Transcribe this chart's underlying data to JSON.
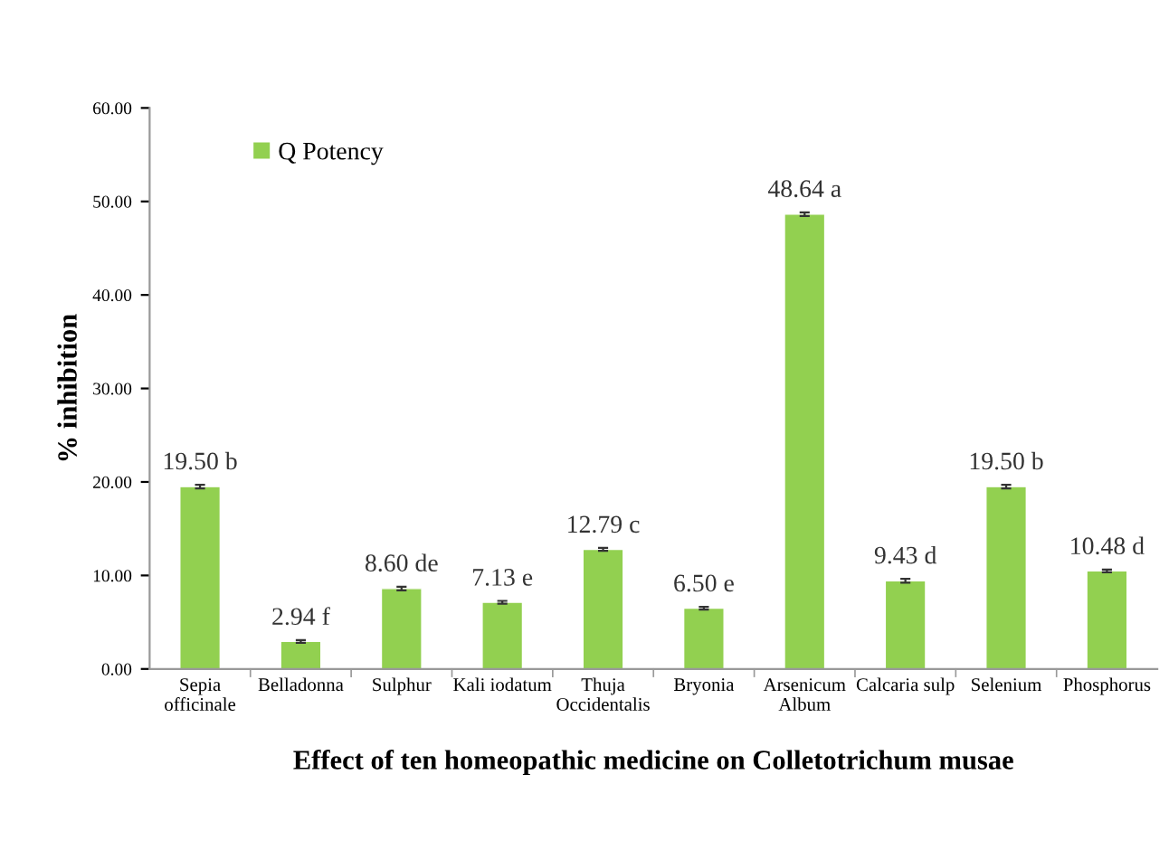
{
  "chart_data": {
    "type": "bar",
    "xlabel": "Effect of ten homeopathic medicine on Colletotrichum musae",
    "ylabel": "% inhibition",
    "categories": [
      "Sepia\nofficinale",
      "Belladonna",
      "Sulphur",
      "Kali iodatum",
      "Thuja\nOccidentalis",
      "Bryonia",
      "Arsenicum\nAlbum",
      "Calcaria sulp",
      "Selenium",
      "Phosphorus"
    ],
    "series": [
      {
        "name": "Q Potency",
        "color": "#92d050",
        "values": [
          19.5,
          2.94,
          8.6,
          7.13,
          12.79,
          6.5,
          48.64,
          9.43,
          19.5,
          10.48
        ],
        "errors": [
          0.2,
          0.15,
          0.2,
          0.15,
          0.15,
          0.15,
          0.2,
          0.2,
          0.2,
          0.15
        ],
        "value_labels": [
          "19.50 b",
          "2.94 f",
          "8.60 de",
          "7.13 e",
          "12.79 c",
          "6.50 e",
          "48.64 a",
          "9.43 d",
          "19.50 b",
          "10.48 d"
        ]
      }
    ],
    "ylim": [
      0,
      60
    ],
    "yticks": [
      {
        "value": 0,
        "label": "0.00"
      },
      {
        "value": 10,
        "label": "10.00"
      },
      {
        "value": 20,
        "label": "20.00"
      },
      {
        "value": 30,
        "label": "30.00"
      },
      {
        "value": 40,
        "label": "40.00"
      },
      {
        "value": 50,
        "label": "50.00"
      },
      {
        "value": 60,
        "label": "60.00"
      }
    ],
    "grid": false,
    "legend": "top left"
  }
}
